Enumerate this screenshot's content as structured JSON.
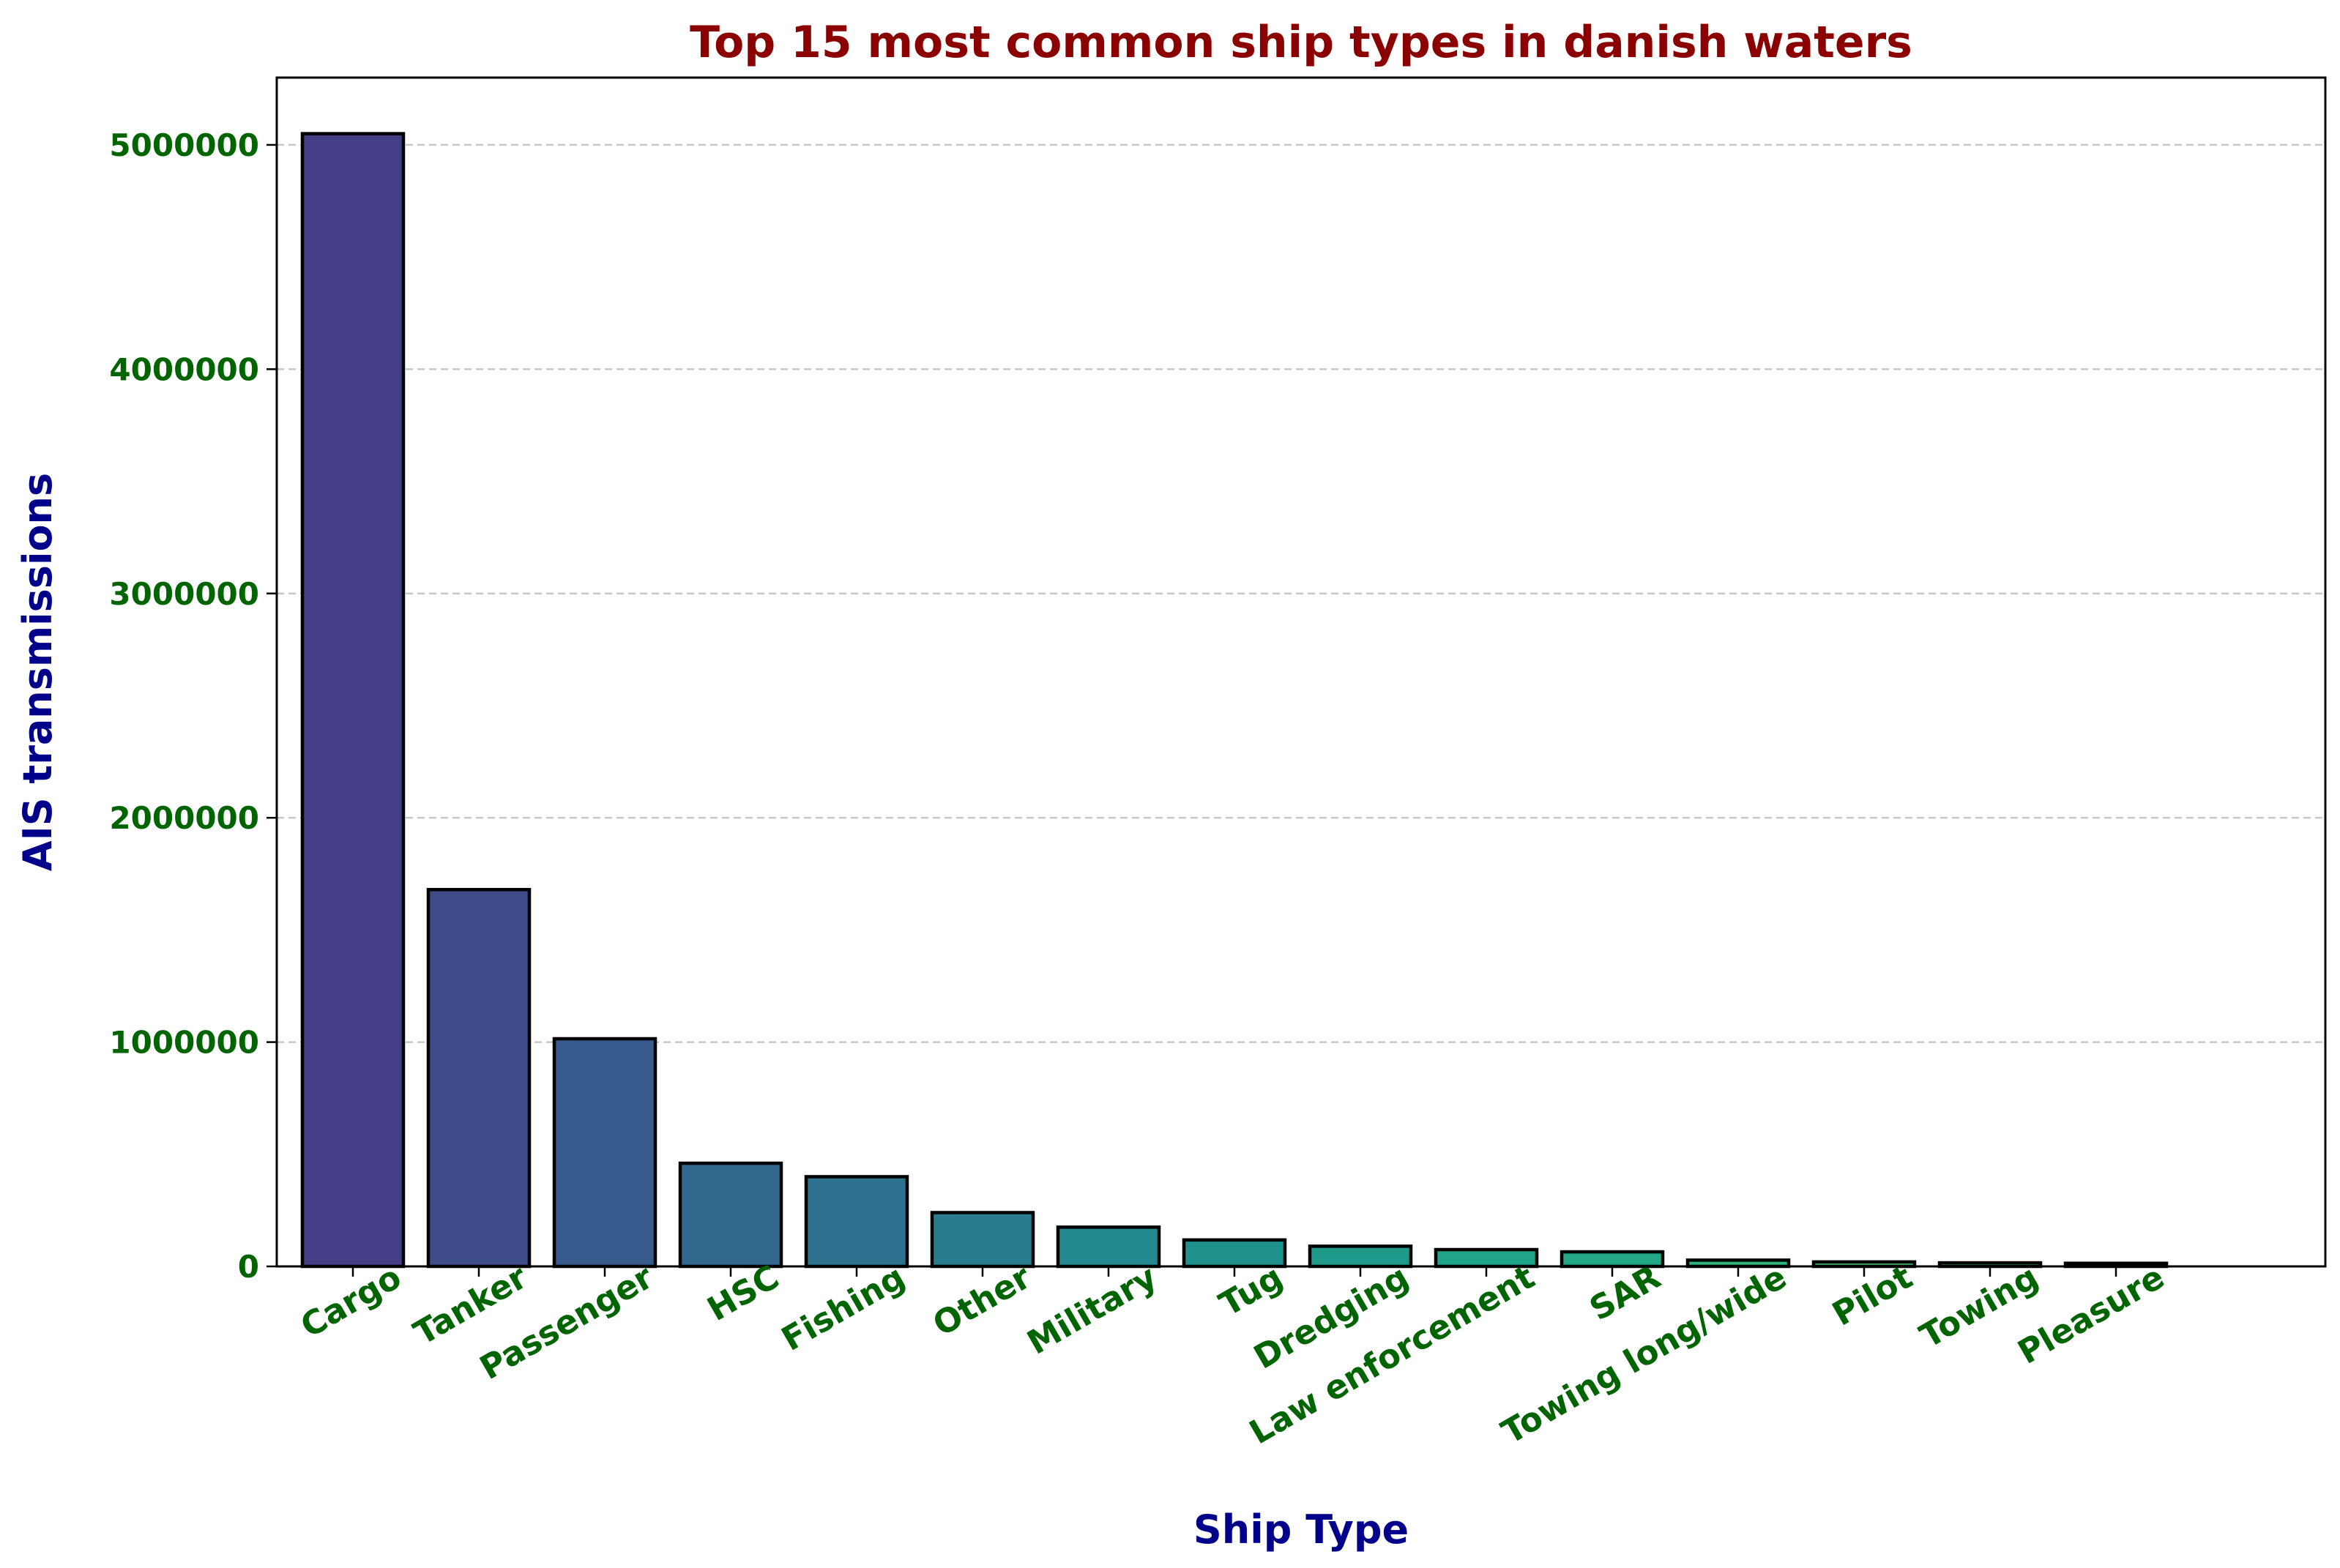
{
  "chart_data": {
    "type": "bar",
    "title": "Top 15 most common ship types in danish waters",
    "xlabel": "Ship Type",
    "ylabel": "AIS transmissions",
    "ylim": [
      0,
      5300000
    ],
    "yticks": [
      0,
      1000000,
      2000000,
      3000000,
      4000000,
      5000000
    ],
    "ytick_labels": [
      "0",
      "1000000",
      "2000000",
      "3000000",
      "4000000",
      "5000000"
    ],
    "grid": "y-dashed",
    "categories": [
      "Cargo",
      "Tanker",
      "Passenger",
      "HSC",
      "Fishing",
      "Other",
      "Military",
      "Tug",
      "Dredging",
      "Law enforcement",
      "SAR",
      "Towing long/wide",
      "Pilot",
      "Towing",
      "Pleasure"
    ],
    "values": [
      5050000,
      1680000,
      1015000,
      460000,
      400000,
      240000,
      175000,
      118000,
      90000,
      75000,
      65000,
      28000,
      20000,
      16000,
      14000
    ],
    "colors": [
      "#433e85",
      "#3e4c8a",
      "#375b8d",
      "#31688e",
      "#2c728e",
      "#297b8e",
      "#23898e",
      "#21918c",
      "#1f9a8a",
      "#20a386",
      "#22a884",
      "#2fb47c",
      "#3fbc73",
      "#4ec36b",
      "#5ec962"
    ]
  }
}
